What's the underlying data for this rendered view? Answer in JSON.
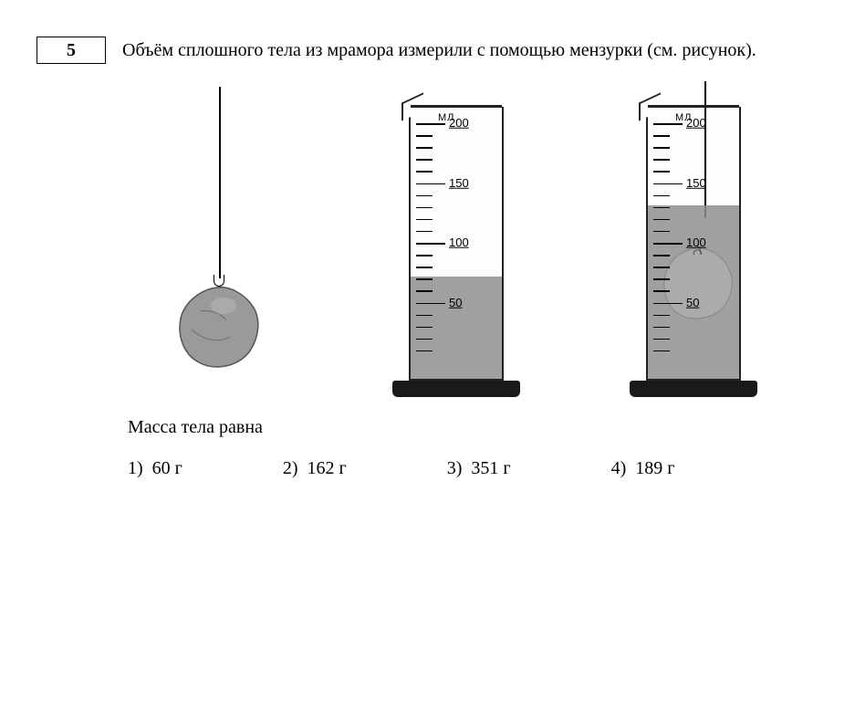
{
  "question_number": "5",
  "question_text": "Объём сплошного тела из мрамора измерили с помощью мензурки (см. рисунок).",
  "subprompt": "Масса тела равна",
  "answers": [
    {
      "n": "1)",
      "v": "60 г"
    },
    {
      "n": "2)",
      "v": "162 г"
    },
    {
      "n": "3)",
      "v": "351 г"
    },
    {
      "n": "4)",
      "v": "189 г"
    }
  ],
  "cylinder": {
    "unit_label": "МЛ",
    "max_label": "200",
    "major_ticks": [
      "200",
      "150",
      "100",
      "50"
    ],
    "scale_top_value": 200,
    "scale_bottom_value": 0,
    "minor_step": 10,
    "water_level_before": 70,
    "water_level_after": 130
  },
  "colors": {
    "background": "#ffffff",
    "ink": "#000000",
    "water": "#8f8f8f",
    "rock": "#9a9a9a",
    "rock_shadow": "#6f6f6f",
    "cyl_border": "#222222",
    "base": "#1a1a1a"
  },
  "typography": {
    "body_family": "Times New Roman",
    "body_size_pt": 15,
    "scale_family": "Arial",
    "scale_size_pt": 10
  }
}
